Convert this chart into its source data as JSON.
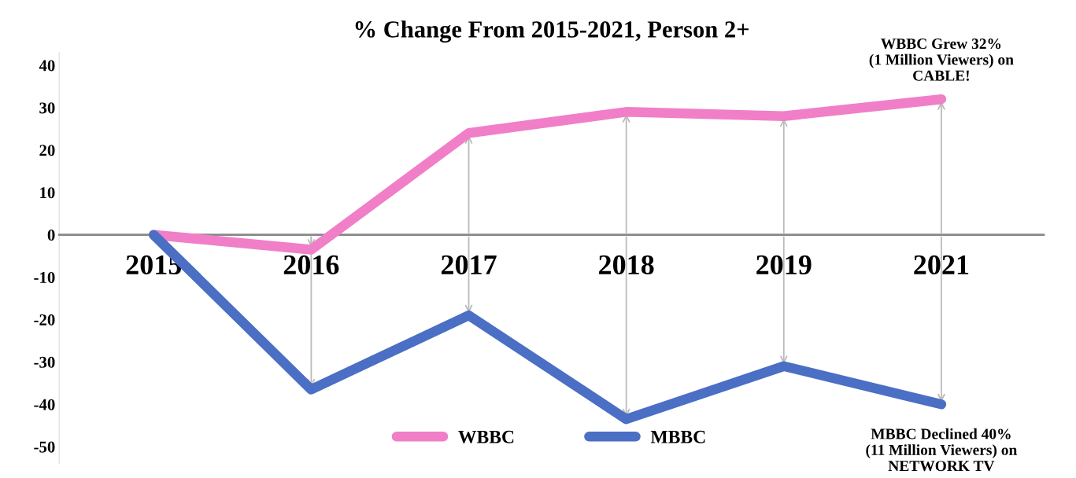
{
  "chart_data": {
    "type": "line",
    "title": "% Change From 2015-2021, Person 2+",
    "categories": [
      "2015",
      "2016",
      "2017",
      "2018",
      "2019",
      "2021"
    ],
    "series": [
      {
        "name": "WBBC",
        "color": "#f07fc8",
        "values": [
          0,
          -3.5,
          24,
          29,
          28,
          32
        ]
      },
      {
        "name": "MBBC",
        "color": "#4a6fc4",
        "values": [
          0,
          -36.5,
          -19,
          -43.5,
          -31,
          -40
        ]
      }
    ],
    "ylim": [
      -54,
      43
    ],
    "yticks": [
      -50,
      -40,
      -30,
      -20,
      -10,
      0,
      10,
      20,
      30,
      40
    ],
    "grid": false,
    "legend": "bottom",
    "line_style": "solid",
    "annotations": [
      {
        "text": "WBBC Grew 32%\n(1 Million Viewers) on\nCABLE!",
        "x": "2021",
        "y": 32
      },
      {
        "text": "MBBC Declined 40%\n(11 Million Viewers) on\nNETWORK TV",
        "x": "2021",
        "y": -40
      }
    ]
  }
}
